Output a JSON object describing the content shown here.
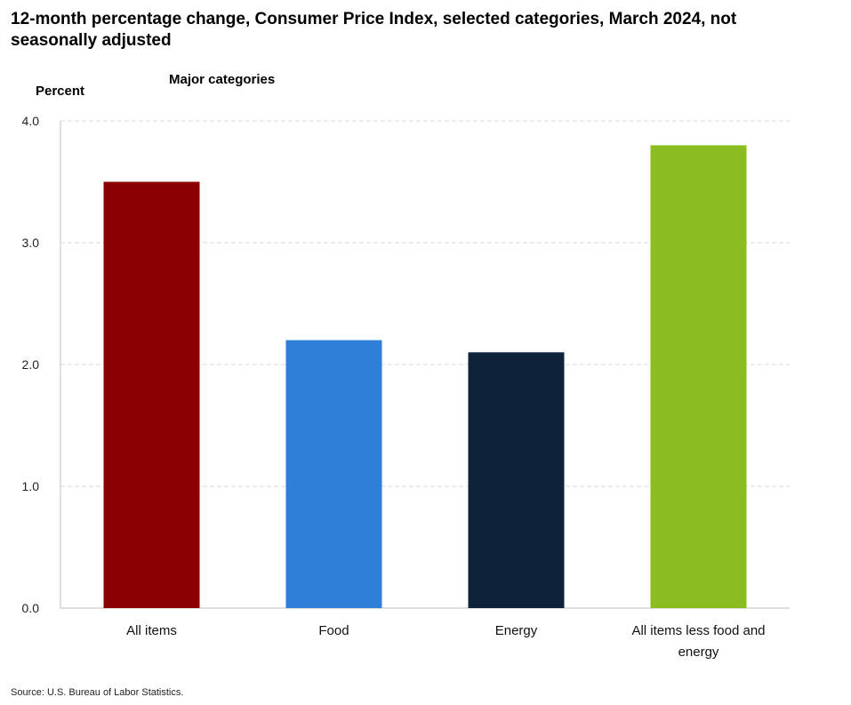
{
  "header": {
    "title": "12-month percentage change, Consumer Price Index, selected categories, March 2024, not seasonally adjusted"
  },
  "footer": {
    "source": "Source: U.S. Bureau of Labor Statistics."
  },
  "chart_data": {
    "type": "bar",
    "title": "12-month percentage change, Consumer Price Index, selected categories, March 2024, not seasonally adjusted",
    "subtitle": "Major categories",
    "ylabel": "Percent",
    "xlabel": "",
    "ylim": [
      0,
      4
    ],
    "yticks": [
      "0.0",
      "1.0",
      "2.0",
      "3.0",
      "4.0"
    ],
    "grid": true,
    "categories": [
      [
        "All items"
      ],
      [
        "Food"
      ],
      [
        "Energy"
      ],
      [
        "All items less food and",
        "energy"
      ]
    ],
    "values": [
      3.5,
      2.2,
      2.1,
      3.8
    ],
    "colors": [
      "#8b0000",
      "#2f7ed8",
      "#0d233a",
      "#8bbc21"
    ]
  }
}
